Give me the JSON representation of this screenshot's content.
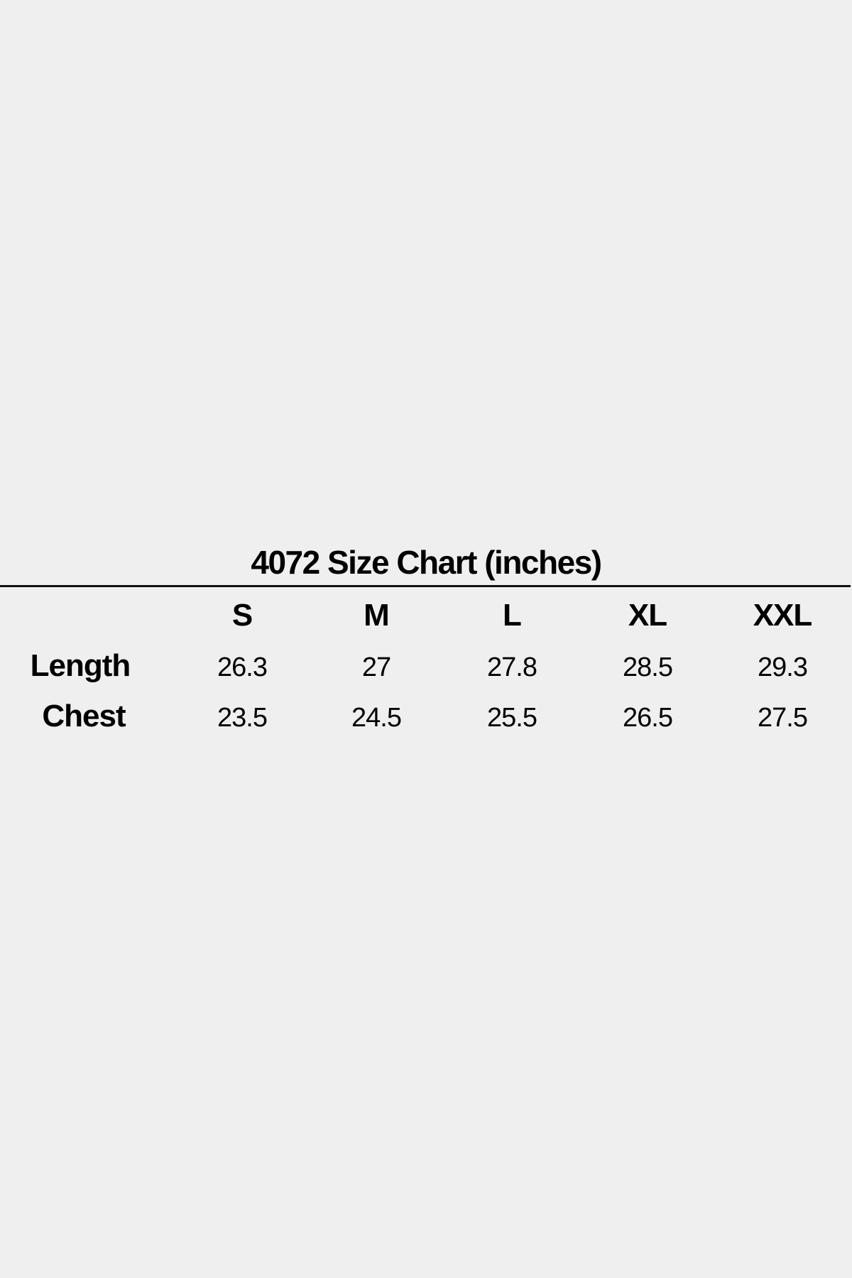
{
  "title": "4072 Size Chart (inches)",
  "sizes": [
    "S",
    "M",
    "L",
    "XL",
    "XXL"
  ],
  "rows": [
    {
      "label": "Length",
      "values": [
        "26.3",
        "27",
        "27.8",
        "28.5",
        "29.3"
      ]
    },
    {
      "label": "Chest",
      "values": [
        "23.5",
        "24.5",
        "25.5",
        "26.5",
        "27.5"
      ]
    }
  ]
}
